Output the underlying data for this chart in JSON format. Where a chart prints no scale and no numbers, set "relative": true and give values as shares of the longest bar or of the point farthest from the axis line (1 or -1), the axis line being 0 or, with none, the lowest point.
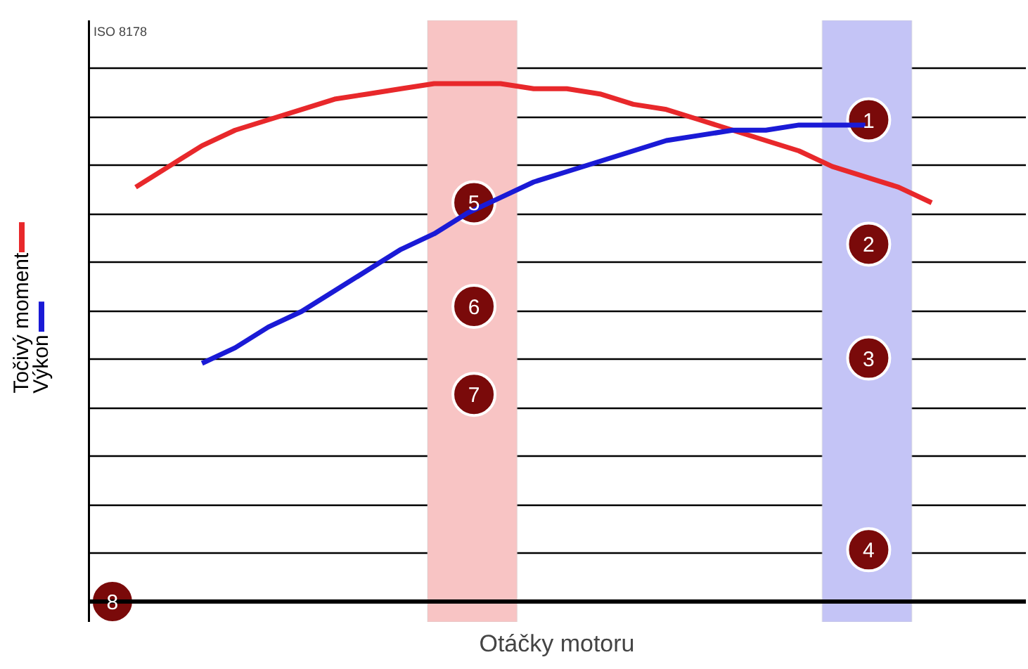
{
  "chart_data": {
    "type": "line",
    "relative": true,
    "xlabel": "Otáčky motoru",
    "categories": [
      null,
      null,
      null,
      null,
      null,
      null,
      null,
      null,
      null,
      null,
      null,
      null,
      null,
      null,
      null,
      null,
      null,
      null,
      null,
      null,
      null,
      null,
      null,
      null,
      null
    ],
    "grid": "y",
    "legend": "left",
    "line_style": "solid",
    "marker": "none",
    "series": [
      {
        "name": "Točivý moment",
        "color": "#e8282b",
        "values": [
          0.8,
          0.84,
          0.88,
          0.91,
          0.93,
          0.95,
          0.97,
          0.98,
          0.99,
          1.0,
          1.0,
          1.0,
          0.99,
          0.99,
          0.98,
          0.96,
          0.95,
          0.93,
          0.91,
          0.89,
          0.87,
          0.84,
          0.82,
          0.8,
          0.77
        ]
      },
      {
        "name": "Výkon",
        "color": "#1a1ad6",
        "values": [
          null,
          null,
          0.46,
          0.49,
          0.53,
          0.56,
          0.6,
          0.64,
          0.68,
          0.71,
          0.75,
          0.78,
          0.81,
          0.83,
          0.85,
          0.87,
          0.89,
          0.9,
          0.91,
          0.91,
          0.92,
          0.92,
          0.92,
          null,
          null
        ]
      }
    ],
    "annotations": [
      "ISO 8178",
      {
        "text": "1",
        "y": 0.93
      },
      {
        "text": "2",
        "y": 0.69
      },
      {
        "text": "3",
        "y": 0.47
      },
      {
        "text": "4",
        "y": 0.1
      },
      {
        "text": "5",
        "y": 0.77
      },
      {
        "text": "6",
        "y": 0.57
      },
      {
        "text": "7",
        "y": 0.4
      },
      {
        "text": "8",
        "y": 0
      }
    ]
  }
}
